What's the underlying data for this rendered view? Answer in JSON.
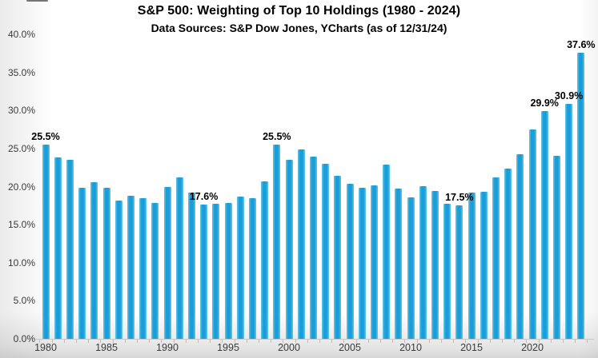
{
  "header": {
    "title": "S&P 500: Weighting of Top 10 Holdings (1980 - 2024)",
    "subtitle": "Data Sources: S&P Dow Jones, YCharts (as of 12/31/24)"
  },
  "chart_data": {
    "type": "bar",
    "x": [
      1980,
      1981,
      1982,
      1983,
      1984,
      1985,
      1986,
      1987,
      1988,
      1989,
      1990,
      1991,
      1992,
      1993,
      1994,
      1995,
      1996,
      1997,
      1998,
      1999,
      2000,
      2001,
      2002,
      2003,
      2004,
      2005,
      2006,
      2007,
      2008,
      2009,
      2010,
      2011,
      2012,
      2013,
      2014,
      2015,
      2016,
      2017,
      2018,
      2019,
      2020,
      2021,
      2022,
      2023,
      2024
    ],
    "values": [
      25.5,
      23.8,
      23.5,
      19.8,
      20.6,
      19.8,
      18.2,
      18.8,
      18.5,
      17.8,
      20.0,
      21.2,
      19.2,
      17.6,
      17.7,
      17.8,
      18.7,
      18.5,
      20.7,
      25.5,
      23.5,
      24.9,
      23.9,
      23.0,
      21.4,
      20.4,
      19.8,
      20.2,
      22.9,
      19.7,
      18.6,
      20.1,
      19.4,
      17.7,
      17.5,
      19.2,
      19.3,
      21.2,
      22.4,
      24.2,
      27.5,
      29.9,
      24.0,
      30.9,
      37.6
    ],
    "value_labels": {
      "1980": "25.5%",
      "1993": "17.6%",
      "1999": "25.5%",
      "2014": "17.5%",
      "2021": "29.9%",
      "2023": "30.9%",
      "2024": "37.6%"
    },
    "y_tick_labels": [
      "40.0%",
      "35.0%",
      "30.0%",
      "25.0%",
      "20.0%",
      "15.0%",
      "10.0%",
      "5.0%",
      "0.0%"
    ],
    "x_tick_labels": [
      "1980",
      "1985",
      "1990",
      "1995",
      "2000",
      "2005",
      "2010",
      "2015",
      "2020"
    ],
    "x_label_step": 5,
    "ylim": [
      0,
      40
    ],
    "grid": "off",
    "legend": "none",
    "bar_color": "#1b9ed8",
    "bar_edge_color": "#66c7ea",
    "axis_text_color": "#3a3a3a",
    "label_text_color": "#000000"
  }
}
